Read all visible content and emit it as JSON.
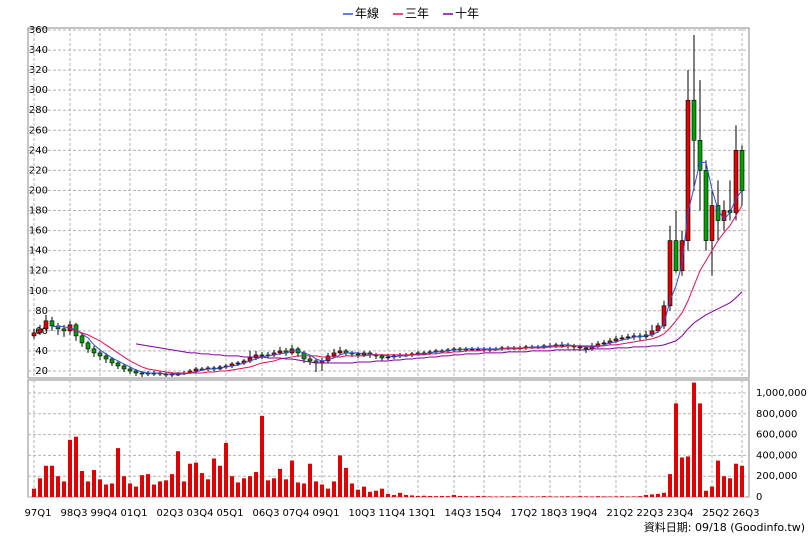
{
  "chart_data": {
    "type": "candlestick",
    "categories": [
      "97Q1",
      null,
      null,
      null,
      null,
      null,
      "98Q3",
      null,
      null,
      null,
      null,
      "99Q4",
      null,
      null,
      null,
      null,
      "01Q1",
      null,
      null,
      null,
      null,
      null,
      "02Q3",
      null,
      null,
      null,
      null,
      "03Q4",
      null,
      null,
      null,
      null,
      "05Q1",
      null,
      null,
      null,
      null,
      null,
      "06Q3",
      null,
      null,
      null,
      null,
      "07Q4",
      null,
      null,
      null,
      null,
      "09Q1",
      null,
      null,
      null,
      null,
      null,
      "10Q3",
      null,
      null,
      null,
      null,
      "11Q4",
      null,
      null,
      null,
      null,
      "13Q1",
      null,
      null,
      null,
      null,
      null,
      "14Q3",
      null,
      null,
      null,
      null,
      "15Q4",
      null,
      null,
      null,
      null,
      null,
      "17Q2",
      null,
      null,
      null,
      null,
      "18Q3",
      null,
      null,
      null,
      null,
      "19Q4",
      null,
      null,
      null,
      null,
      null,
      "21Q2",
      null,
      null,
      null,
      null,
      "22Q3",
      null,
      null,
      null,
      null,
      "23Q4",
      null,
      null,
      null,
      null,
      null,
      "25Q2",
      null,
      null,
      null,
      null,
      "26Q3"
    ],
    "open": [
      55,
      58,
      62,
      70,
      65,
      62,
      60,
      66,
      55,
      48,
      42,
      38,
      35,
      32,
      28,
      25,
      22,
      20,
      18,
      17,
      18,
      18,
      17,
      16,
      17,
      17,
      18,
      20,
      22,
      22,
      23,
      22,
      24,
      25,
      27,
      28,
      30,
      33,
      36,
      35,
      36,
      38,
      40,
      38,
      42,
      38,
      32,
      30,
      28,
      30,
      35,
      38,
      40,
      38,
      37,
      36,
      38,
      36,
      35,
      33,
      34,
      35,
      36,
      36,
      37,
      38,
      38,
      39,
      40,
      40,
      41,
      42,
      41,
      42,
      42,
      42,
      41,
      42,
      42,
      43,
      43,
      43,
      43,
      44,
      44,
      44,
      45,
      45,
      46,
      46,
      45,
      44,
      43,
      42,
      45,
      47,
      48,
      50,
      52,
      53,
      54,
      55,
      54,
      56,
      60,
      65,
      85,
      150,
      120,
      150,
      290,
      250,
      220,
      150,
      185,
      170,
      180,
      178,
      240
    ],
    "high": [
      62,
      66,
      76,
      74,
      68,
      66,
      70,
      68,
      58,
      50,
      45,
      40,
      38,
      34,
      30,
      27,
      24,
      22,
      20,
      20,
      20,
      20,
      19,
      19,
      19,
      20,
      22,
      24,
      24,
      25,
      25,
      26,
      27,
      29,
      30,
      32,
      40,
      40,
      39,
      39,
      41,
      44,
      43,
      46,
      44,
      40,
      35,
      32,
      33,
      38,
      42,
      44,
      42,
      40,
      39,
      40,
      40,
      38,
      37,
      37,
      37,
      38,
      38,
      39,
      40,
      40,
      41,
      42,
      42,
      43,
      44,
      44,
      44,
      44,
      44,
      44,
      44,
      44,
      45,
      45,
      45,
      45,
      46,
      46,
      46,
      47,
      48,
      48,
      49,
      48,
      47,
      46,
      45,
      48,
      50,
      51,
      53,
      55,
      56,
      57,
      58,
      58,
      60,
      66,
      68,
      90,
      165,
      180,
      160,
      320,
      355,
      310,
      230,
      200,
      210,
      190,
      210,
      265,
      245
    ],
    "low": [
      52,
      56,
      60,
      60,
      56,
      54,
      56,
      50,
      44,
      38,
      34,
      31,
      28,
      25,
      22,
      19,
      17,
      15,
      14,
      15,
      15,
      15,
      14,
      14,
      15,
      16,
      17,
      19,
      20,
      20,
      20,
      21,
      22,
      23,
      25,
      26,
      28,
      31,
      32,
      33,
      34,
      36,
      35,
      36,
      34,
      28,
      26,
      19,
      20,
      28,
      33,
      36,
      35,
      34,
      33,
      34,
      33,
      32,
      30,
      31,
      32,
      33,
      34,
      34,
      35,
      36,
      36,
      37,
      38,
      38,
      39,
      39,
      39,
      40,
      40,
      39,
      39,
      40,
      40,
      41,
      41,
      41,
      41,
      42,
      42,
      42,
      43,
      43,
      43,
      42,
      41,
      40,
      38,
      40,
      43,
      45,
      46,
      48,
      50,
      51,
      51,
      50,
      52,
      54,
      58,
      62,
      80,
      118,
      115,
      140,
      200,
      180,
      140,
      115,
      150,
      160,
      170,
      170,
      185
    ],
    "close": [
      58,
      62,
      70,
      65,
      62,
      60,
      66,
      55,
      48,
      42,
      38,
      35,
      32,
      28,
      25,
      22,
      20,
      18,
      17,
      18,
      18,
      17,
      16,
      17,
      17,
      18,
      20,
      22,
      22,
      23,
      22,
      24,
      25,
      27,
      28,
      30,
      33,
      36,
      35,
      36,
      38,
      40,
      38,
      42,
      38,
      32,
      30,
      28,
      30,
      35,
      38,
      40,
      38,
      37,
      36,
      38,
      36,
      35,
      33,
      34,
      35,
      36,
      36,
      37,
      38,
      38,
      39,
      40,
      40,
      41,
      42,
      41,
      42,
      42,
      42,
      41,
      42,
      42,
      43,
      43,
      43,
      43,
      44,
      44,
      44,
      45,
      45,
      46,
      46,
      45,
      44,
      43,
      42,
      45,
      47,
      48,
      50,
      52,
      53,
      54,
      55,
      54,
      56,
      60,
      65,
      85,
      150,
      120,
      150,
      290,
      250,
      220,
      150,
      185,
      170,
      180,
      178,
      240,
      200
    ],
    "up_color": "#e00000",
    "down_color": "#00a000",
    "ylim": [
      13,
      362
    ],
    "yticks": [
      20,
      40,
      60,
      80,
      100,
      120,
      140,
      160,
      180,
      200,
      220,
      240,
      260,
      280,
      300,
      320,
      340,
      360
    ],
    "grid": true,
    "lines": [
      {
        "name": "年線",
        "color": "#3050d0",
        "values": [
          null,
          null,
          null,
          64,
          65,
          64,
          63,
          61,
          57,
          53,
          46,
          41,
          37,
          33,
          30,
          27,
          24,
          21,
          19,
          18,
          18,
          18,
          17,
          17,
          17,
          17,
          18,
          19,
          21,
          22,
          22,
          23,
          24,
          25,
          26,
          28,
          30,
          32,
          34,
          35,
          36,
          37,
          38,
          40,
          40,
          38,
          36,
          32,
          30,
          31,
          33,
          36,
          38,
          38,
          38,
          37,
          37,
          36,
          36,
          35,
          34,
          35,
          35,
          36,
          37,
          37,
          38,
          39,
          39,
          40,
          41,
          41,
          42,
          42,
          42,
          42,
          42,
          42,
          42,
          43,
          43,
          43,
          43,
          44,
          44,
          44,
          45,
          45,
          46,
          46,
          45,
          45,
          44,
          44,
          44,
          46,
          48,
          49,
          51,
          52,
          54,
          54,
          55,
          56,
          59,
          67,
          90,
          105,
          126,
          178,
          203,
          228,
          228,
          201,
          181,
          171,
          178,
          192,
          200
        ]
      },
      {
        "name": "三年",
        "color": "#e0105a",
        "values": [
          null,
          null,
          null,
          null,
          null,
          null,
          62,
          60,
          58,
          56,
          53,
          50,
          46,
          42,
          38,
          34,
          30,
          27,
          24,
          22,
          21,
          20,
          19,
          18,
          18,
          18,
          18,
          18,
          18,
          19,
          19,
          20,
          20,
          21,
          22,
          23,
          24,
          26,
          28,
          29,
          30,
          32,
          33,
          34,
          35,
          35,
          35,
          35,
          34,
          34,
          34,
          34,
          35,
          35,
          35,
          35,
          36,
          36,
          36,
          36,
          36,
          36,
          36,
          36,
          36,
          36,
          37,
          37,
          38,
          38,
          39,
          39,
          40,
          40,
          40,
          41,
          41,
          41,
          42,
          42,
          42,
          42,
          43,
          43,
          43,
          43,
          44,
          44,
          44,
          45,
          45,
          45,
          45,
          45,
          45,
          45,
          46,
          46,
          47,
          48,
          49,
          50,
          51,
          52,
          54,
          57,
          63,
          70,
          78,
          90,
          105,
          120,
          130,
          140,
          150,
          158,
          165,
          175,
          185
        ]
      },
      {
        "name": "十年",
        "color": "#8000a0",
        "values": [
          null,
          null,
          null,
          null,
          null,
          null,
          null,
          null,
          null,
          null,
          null,
          null,
          null,
          null,
          null,
          null,
          null,
          47,
          46,
          45,
          44,
          43,
          42,
          41,
          40,
          39,
          38,
          38,
          37,
          37,
          36,
          36,
          35,
          35,
          35,
          34,
          34,
          34,
          34,
          33,
          33,
          33,
          32,
          32,
          31,
          30,
          29,
          28,
          28,
          28,
          28,
          28,
          28,
          28,
          29,
          29,
          29,
          30,
          30,
          30,
          31,
          31,
          32,
          32,
          33,
          33,
          34,
          34,
          35,
          35,
          36,
          36,
          37,
          37,
          37,
          38,
          38,
          38,
          38,
          39,
          39,
          39,
          39,
          40,
          40,
          40,
          40,
          41,
          41,
          41,
          41,
          41,
          41,
          42,
          42,
          42,
          42,
          43,
          43,
          43,
          44,
          44,
          44,
          45,
          45,
          46,
          48,
          50,
          55,
          62,
          68,
          72,
          76,
          79,
          82,
          85,
          88,
          93,
          99
        ]
      }
    ],
    "volume": {
      "color": "#e00000",
      "values": [
        80000,
        180000,
        300000,
        300000,
        200000,
        150000,
        550000,
        580000,
        250000,
        150000,
        260000,
        170000,
        120000,
        130000,
        470000,
        200000,
        130000,
        100000,
        210000,
        220000,
        120000,
        150000,
        160000,
        220000,
        440000,
        150000,
        320000,
        330000,
        230000,
        170000,
        370000,
        300000,
        520000,
        200000,
        140000,
        180000,
        200000,
        240000,
        780000,
        160000,
        180000,
        270000,
        170000,
        350000,
        140000,
        130000,
        320000,
        150000,
        120000,
        80000,
        150000,
        400000,
        280000,
        130000,
        70000,
        100000,
        50000,
        60000,
        80000,
        30000,
        20000,
        40000,
        20000,
        15000,
        10000,
        12000,
        10000,
        8000,
        10000,
        8000,
        20000,
        10000,
        8000,
        6000,
        10000,
        8000,
        6000,
        5000,
        6000,
        5000,
        8000,
        6000,
        5000,
        6000,
        5000,
        8000,
        6000,
        5000,
        6000,
        7000,
        5000,
        8000,
        6000,
        5000,
        8000,
        6000,
        5000,
        6000,
        7000,
        5000,
        6000,
        8000,
        20000,
        25000,
        30000,
        40000,
        220000,
        900000,
        380000,
        390000,
        1100000,
        900000,
        60000,
        100000,
        350000,
        200000,
        180000,
        320000,
        300000
      ],
      "ylim": [
        0,
        1125000
      ],
      "yticks": [
        0,
        {
          "value": 200000,
          "label": "200,000"
        },
        {
          "value": 400000,
          "label": "400,000"
        },
        {
          "value": 600000,
          "label": "600,000"
        },
        {
          "value": 800000,
          "label": "800,000"
        },
        {
          "value": 1000000,
          "label": "1,000,000"
        }
      ]
    },
    "source": "資料日期: 09/18 (Goodinfo.tw)"
  }
}
